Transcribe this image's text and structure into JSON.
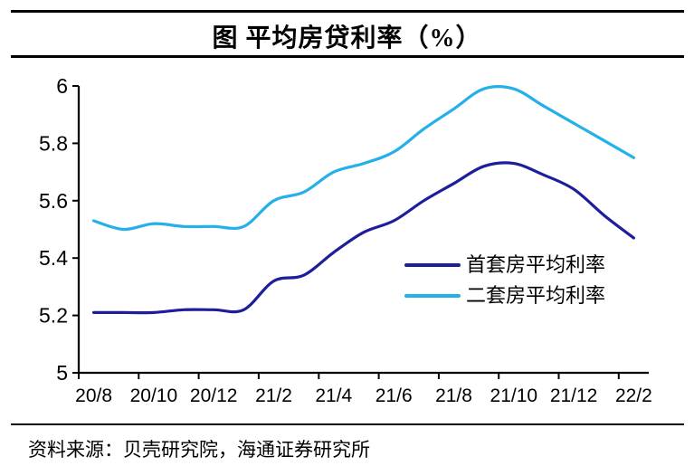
{
  "title": "图 平均房贷利率（%）",
  "source": "资料来源：贝壳研究院，海通证券研究所",
  "colors": {
    "first_home_line": "#1E1E9C",
    "second_home_line": "#24B0E8",
    "axis": "#000000",
    "text": "#000000"
  },
  "chart_data": {
    "type": "line",
    "title": "图 平均房贷利率（%）",
    "x": [
      "20/8",
      "20/9",
      "20/10",
      "20/11",
      "20/12",
      "21/1",
      "21/2",
      "21/3",
      "21/4",
      "21/5",
      "21/6",
      "21/7",
      "21/8",
      "21/9",
      "21/10",
      "21/11",
      "21/12",
      "22/1",
      "22/2"
    ],
    "x_tick_labels": [
      "20/8",
      "20/10",
      "20/12",
      "21/2",
      "21/4",
      "21/6",
      "21/8",
      "21/10",
      "21/12",
      "22/2"
    ],
    "series": [
      {
        "name": "首套房平均利率",
        "color": "#1E1E9C",
        "values": [
          5.21,
          5.21,
          5.21,
          5.22,
          5.22,
          5.22,
          5.32,
          5.34,
          5.42,
          5.49,
          5.53,
          5.6,
          5.66,
          5.72,
          5.73,
          5.69,
          5.64,
          5.55,
          5.47
        ]
      },
      {
        "name": "二套房平均利率",
        "color": "#24B0E8",
        "values": [
          5.53,
          5.5,
          5.52,
          5.51,
          5.51,
          5.51,
          5.6,
          5.63,
          5.7,
          5.73,
          5.77,
          5.85,
          5.92,
          5.99,
          5.99,
          5.93,
          5.87,
          5.81,
          5.75
        ]
      }
    ],
    "ylim": [
      5,
      6
    ],
    "yticks": [
      5,
      5.2,
      5.4,
      5.6,
      5.8,
      6
    ],
    "grid": false,
    "smoothed_lines": true,
    "legend_position": "inside-lower-right"
  }
}
